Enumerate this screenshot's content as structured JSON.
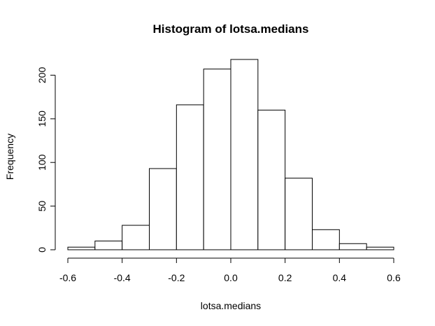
{
  "chart_data": {
    "type": "bar",
    "title": "Histogram of lotsa.medians",
    "xlabel": "lotsa.medians",
    "ylabel": "Frequency",
    "bin_edges": [
      -0.6,
      -0.5,
      -0.4,
      -0.3,
      -0.2,
      -0.1,
      0.0,
      0.1,
      0.2,
      0.3,
      0.4,
      0.5,
      0.6
    ],
    "values": [
      3,
      10,
      28,
      93,
      166,
      207,
      218,
      160,
      82,
      23,
      7,
      3
    ],
    "xlim": [
      -0.6,
      0.6
    ],
    "ylim": [
      0,
      222
    ],
    "x_ticks": [
      -0.6,
      -0.4,
      -0.2,
      0.0,
      0.2,
      0.4,
      0.6
    ],
    "x_tick_labels": [
      "-0.6",
      "-0.4",
      "-0.2",
      "0.0",
      "0.2",
      "0.4",
      "0.6"
    ],
    "y_ticks": [
      0,
      50,
      100,
      150,
      200
    ],
    "y_tick_labels": [
      "0",
      "50",
      "100",
      "150",
      "200"
    ],
    "grid": false,
    "bar_fill": "#ffffff",
    "bar_stroke": "#000000"
  }
}
